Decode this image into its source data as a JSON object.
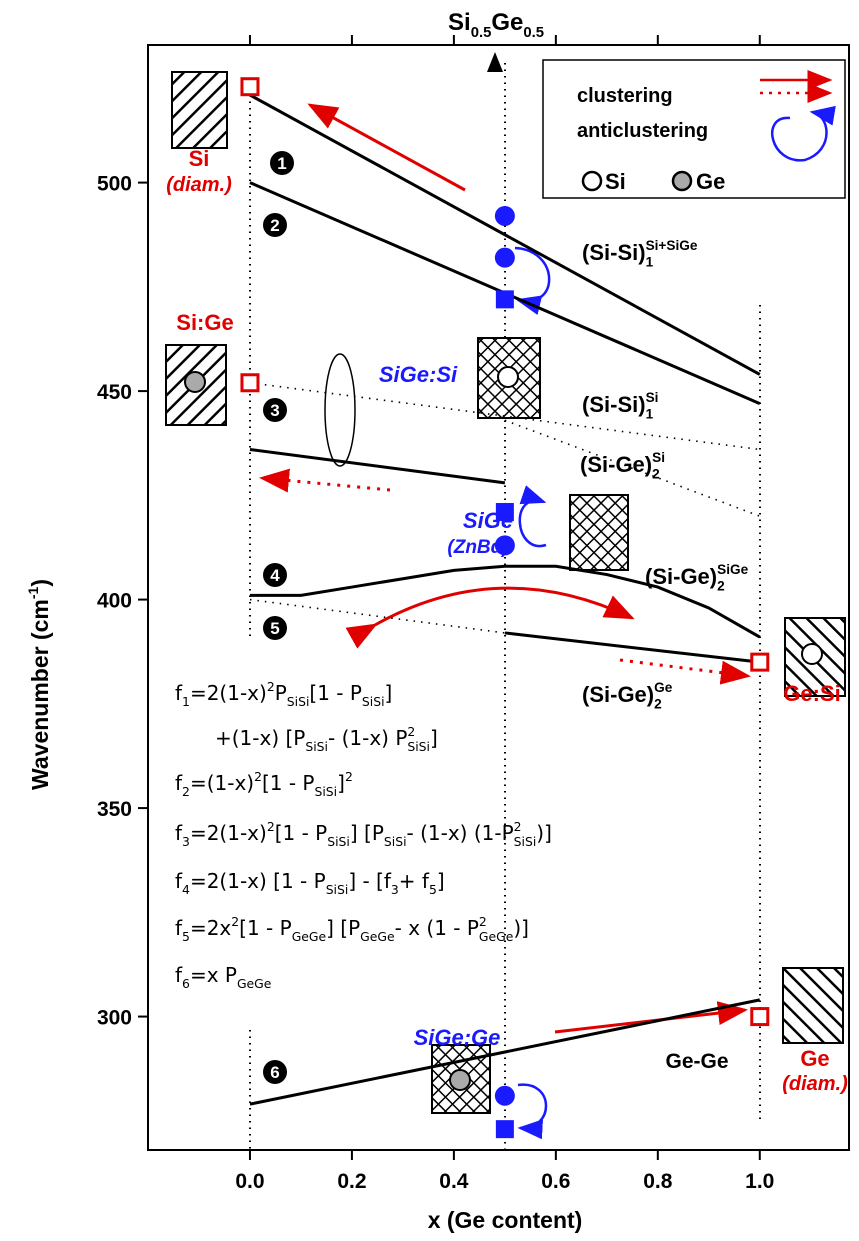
{
  "chart_data": {
    "type": "line",
    "title": [
      {
        "text": "Si"
      },
      {
        "sub": "0.5"
      },
      {
        "text": "Ge"
      },
      {
        "sub": "0.5"
      }
    ],
    "x_label": "x (Ge content)",
    "y_label": [
      {
        "text": "Wavenumber (cm"
      },
      {
        "sup": "-1"
      },
      {
        "text": ")"
      }
    ],
    "xlim": [
      -0.2,
      1.175
    ],
    "ylim": [
      268,
      533
    ],
    "xticks": [
      {
        "value": 0,
        "label": "0.0"
      },
      0.2,
      0.4,
      0.6,
      0.8,
      {
        "value": 1,
        "label": "1.0"
      }
    ],
    "yticks": [
      300,
      350,
      400,
      450,
      500
    ],
    "series": [
      {
        "style": "solid",
        "x": [
          0,
          1
        ],
        "y": [
          521,
          454
        ]
      },
      {
        "style": "solid",
        "x": [
          0,
          1
        ],
        "y": [
          500,
          447
        ]
      },
      {
        "style": "dotted",
        "x": [
          0,
          1
        ],
        "y": [
          452,
          436
        ]
      },
      {
        "style": "dotted",
        "x": [
          0.5,
          1
        ],
        "y": [
          443,
          420
        ]
      },
      {
        "style": "solid",
        "x": [
          0,
          0.5
        ],
        "y": [
          436,
          428
        ]
      },
      {
        "style": "solid",
        "x": [
          0,
          0.1,
          0.2,
          0.3,
          0.4,
          0.5,
          0.6,
          0.7,
          0.8,
          0.9,
          1
        ],
        "y": [
          401,
          401,
          403,
          405,
          407,
          408,
          408,
          406,
          403,
          398,
          391
        ]
      },
      {
        "style": "dotted",
        "x": [
          0,
          0.5
        ],
        "y": [
          400,
          392
        ]
      },
      {
        "style": "solid",
        "x": [
          0.5,
          1
        ],
        "y": [
          392,
          385
        ]
      },
      {
        "style": "solid",
        "x": [
          0,
          1
        ],
        "y": [
          279,
          304
        ]
      }
    ],
    "markers": [
      {
        "shape": "open-square",
        "color": "#e00000",
        "x": 0,
        "y": 523
      },
      {
        "shape": "open-square",
        "color": "#e00000",
        "x": 0,
        "y": 452
      },
      {
        "shape": "open-square",
        "color": "#e00000",
        "x": 1,
        "y": 385
      },
      {
        "shape": "open-square",
        "color": "#e00000",
        "x": 1,
        "y": 300
      },
      {
        "shape": "circle",
        "color": "#1a1aff",
        "x": 0.5,
        "y": 492
      },
      {
        "shape": "circle",
        "color": "#1a1aff",
        "x": 0.5,
        "y": 482
      },
      {
        "shape": "square",
        "color": "#1a1aff",
        "x": 0.5,
        "y": 472
      },
      {
        "shape": "square",
        "color": "#1a1aff",
        "x": 0.5,
        "y": 421
      },
      {
        "shape": "circle",
        "color": "#1a1aff",
        "x": 0.5,
        "y": 413
      },
      {
        "shape": "circle",
        "color": "#1a1aff",
        "x": 0.5,
        "y": 281
      },
      {
        "shape": "square",
        "color": "#1a1aff",
        "x": 0.5,
        "y": 273
      }
    ],
    "legend": {
      "clustering": "clustering",
      "anticlustering": "anticlustering",
      "si": "Si",
      "ge": "Ge"
    },
    "numbers": [
      "1",
      "2",
      "3",
      "4",
      "5",
      "6"
    ],
    "labels": {
      "si": "Si",
      "si_diam": "(diam.)",
      "si_ge": "Si:Ge",
      "sige_si": "SiGe:Si",
      "sige": "SiGe",
      "znbd": "(ZnBd)",
      "ge_si": "Ge:Si",
      "ge": "Ge",
      "ge_diam": "(diam.)",
      "sige_ge": "SiGe:Ge",
      "gege": "Ge-Ge"
    },
    "modes": [
      [
        {
          "text": "(Si-Si)"
        },
        {
          "sup": "Si+SiGe"
        },
        {
          "sub": "1"
        }
      ],
      [
        {
          "text": "(Si-Si)"
        },
        {
          "sup": "Si"
        },
        {
          "sub": "1"
        }
      ],
      [
        {
          "text": "(Si-Ge)"
        },
        {
          "sup": "Si"
        },
        {
          "sub": "2"
        }
      ],
      [
        {
          "text": "(Si-Ge)"
        },
        {
          "sup": "SiGe"
        },
        {
          "sub": "2"
        }
      ],
      [
        {
          "text": "(Si-Ge)"
        },
        {
          "sup": "Ge"
        },
        {
          "sub": "2"
        }
      ]
    ],
    "formulas": [
      [
        {
          "text": "f"
        },
        {
          "sub": "1"
        },
        {
          "text": "=2(1-x)"
        },
        {
          "sup": "2"
        },
        {
          "text": " P"
        },
        {
          "sub": "SiSi"
        },
        {
          "text": " [1 - P"
        },
        {
          "sub": "SiSi"
        },
        {
          "text": " ]"
        }
      ],
      [
        {
          "text": "+(1-x) [P"
        },
        {
          "sub": "SiSi"
        },
        {
          "text": "- (1-x) P"
        },
        {
          "sup": "2"
        },
        {
          "sub": "SiSi"
        },
        {
          "text": " ]"
        }
      ],
      [
        {
          "text": "f"
        },
        {
          "sub": "2"
        },
        {
          "text": "=(1-x)"
        },
        {
          "sup": "2"
        },
        {
          "text": " [1 - P"
        },
        {
          "sub": "SiSi"
        },
        {
          "text": " ]"
        },
        {
          "sup": "2"
        }
      ],
      [
        {
          "text": "f"
        },
        {
          "sub": "3"
        },
        {
          "text": "=2(1-x)"
        },
        {
          "sup": "2"
        },
        {
          "text": " [1 - P"
        },
        {
          "sub": "SiSi"
        },
        {
          "text": " ] [P"
        },
        {
          "sub": "SiSi"
        },
        {
          "text": " - (1-x) (1-P"
        },
        {
          "sup": "2"
        },
        {
          "sub": "SiSi"
        },
        {
          "text": " )]"
        }
      ],
      [
        {
          "text": "f"
        },
        {
          "sub": "4"
        },
        {
          "text": "=2(1-x) [1 - P"
        },
        {
          "sub": "SiSi"
        },
        {
          "text": " ] - [f"
        },
        {
          "sub": "3"
        },
        {
          "text": "+ f"
        },
        {
          "sub": "5"
        },
        {
          "text": "]"
        }
      ],
      [
        {
          "text": "f"
        },
        {
          "sub": "5"
        },
        {
          "text": "=2x"
        },
        {
          "sup": "2"
        },
        {
          "text": " [1 - P"
        },
        {
          "sub": "GeGe"
        },
        {
          "text": " ] [P"
        },
        {
          "sub": "GeGe"
        },
        {
          "text": " - x (1 - P"
        },
        {
          "sup": "2"
        },
        {
          "sub": "GeGe"
        },
        {
          "text": " )]"
        }
      ],
      [
        {
          "text": "f"
        },
        {
          "sub": "6"
        },
        {
          "text": "=x P"
        },
        {
          "sub": "GeGe"
        }
      ]
    ]
  }
}
